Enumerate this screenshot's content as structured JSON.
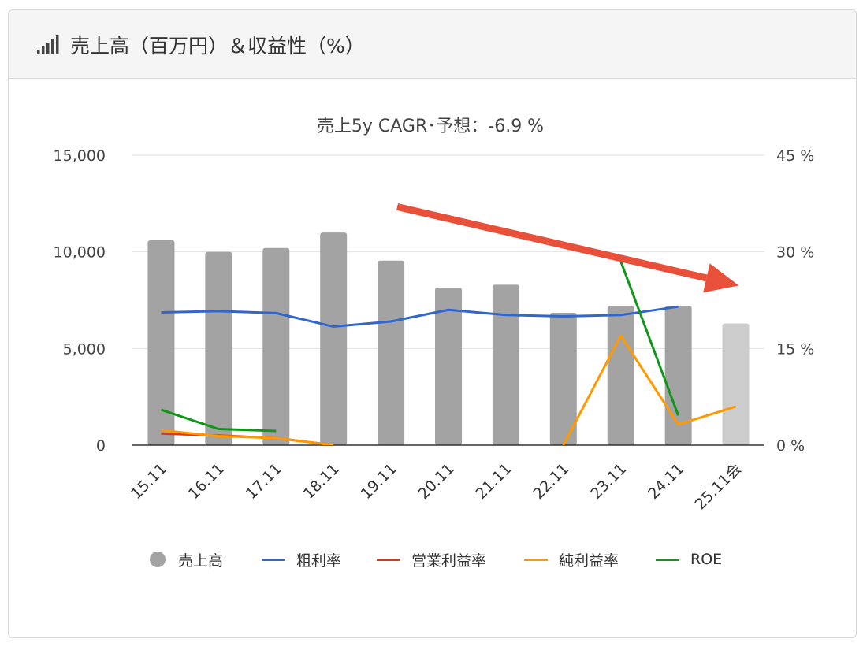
{
  "header": {
    "title": "売上高（百万円）＆収益性（%）",
    "icon": "bar-signal-icon"
  },
  "legend": [
    {
      "label": "売上高",
      "color": "#a3a3a3",
      "kind": "dot"
    },
    {
      "label": "粗利率",
      "color": "#3366cc",
      "kind": "line"
    },
    {
      "label": "営業利益率",
      "color": "#dc3912",
      "kind": "line"
    },
    {
      "label": "純利益率",
      "color": "#ff9900",
      "kind": "line"
    },
    {
      "label": "ROE",
      "color": "#109618",
      "kind": "line"
    }
  ],
  "chart_data": {
    "type": "bar",
    "title": "売上5y CAGR･予想：-6.9 %",
    "categories": [
      "15.11",
      "16.11",
      "17.11",
      "18.11",
      "19.11",
      "20.11",
      "21.11",
      "22.11",
      "23.11",
      "24.11",
      "25.11会"
    ],
    "left_axis": {
      "ylim": [
        0,
        15000
      ],
      "ticks": [
        "15,000",
        "10,000",
        "5,000",
        "0"
      ],
      "tick_values": [
        15000,
        10000,
        5000,
        0
      ]
    },
    "right_axis": {
      "ylim": [
        0,
        45
      ],
      "ticks": [
        "45 %",
        "30 %",
        "15 %",
        "0 %"
      ],
      "tick_values": [
        45,
        30,
        15,
        0
      ]
    },
    "grid": true,
    "legend_position": "bottom",
    "bars": {
      "name": "売上高",
      "values": [
        10600,
        10000,
        10200,
        11000,
        9550,
        8150,
        8300,
        6850,
        7200,
        7200,
        6300
      ],
      "colors": [
        "#a3a3a3",
        "#a3a3a3",
        "#a3a3a3",
        "#a3a3a3",
        "#a3a3a3",
        "#a3a3a3",
        "#a3a3a3",
        "#a3a3a3",
        "#a3a3a3",
        "#a3a3a3",
        "#cccccc"
      ]
    },
    "series": [
      {
        "name": "粗利率",
        "color": "#3366cc",
        "values": [
          20.6,
          20.8,
          20.5,
          18.4,
          19.2,
          21.0,
          20.2,
          20.0,
          20.2,
          21.5,
          null
        ]
      },
      {
        "name": "営業利益率",
        "color": "#dc3912",
        "values": [
          1.8,
          1.5,
          1.1,
          0,
          null,
          null,
          null,
          null,
          null,
          null,
          null
        ]
      },
      {
        "name": "純利益率",
        "color": "#ff9900",
        "values": [
          2.3,
          1.4,
          1.1,
          0,
          null,
          null,
          null,
          0,
          17.0,
          3.2,
          6.0
        ]
      },
      {
        "name": "ROE",
        "color": "#109618",
        "values": [
          5.5,
          2.5,
          2.2,
          null,
          null,
          null,
          null,
          null,
          28.5,
          4.6,
          null
        ]
      }
    ],
    "annotation": {
      "kind": "trend-arrow",
      "color": "#e8503a",
      "from": {
        "category": "19.11",
        "right_value": 37
      },
      "to": {
        "category": "25.11会",
        "right_value": 25
      }
    }
  }
}
